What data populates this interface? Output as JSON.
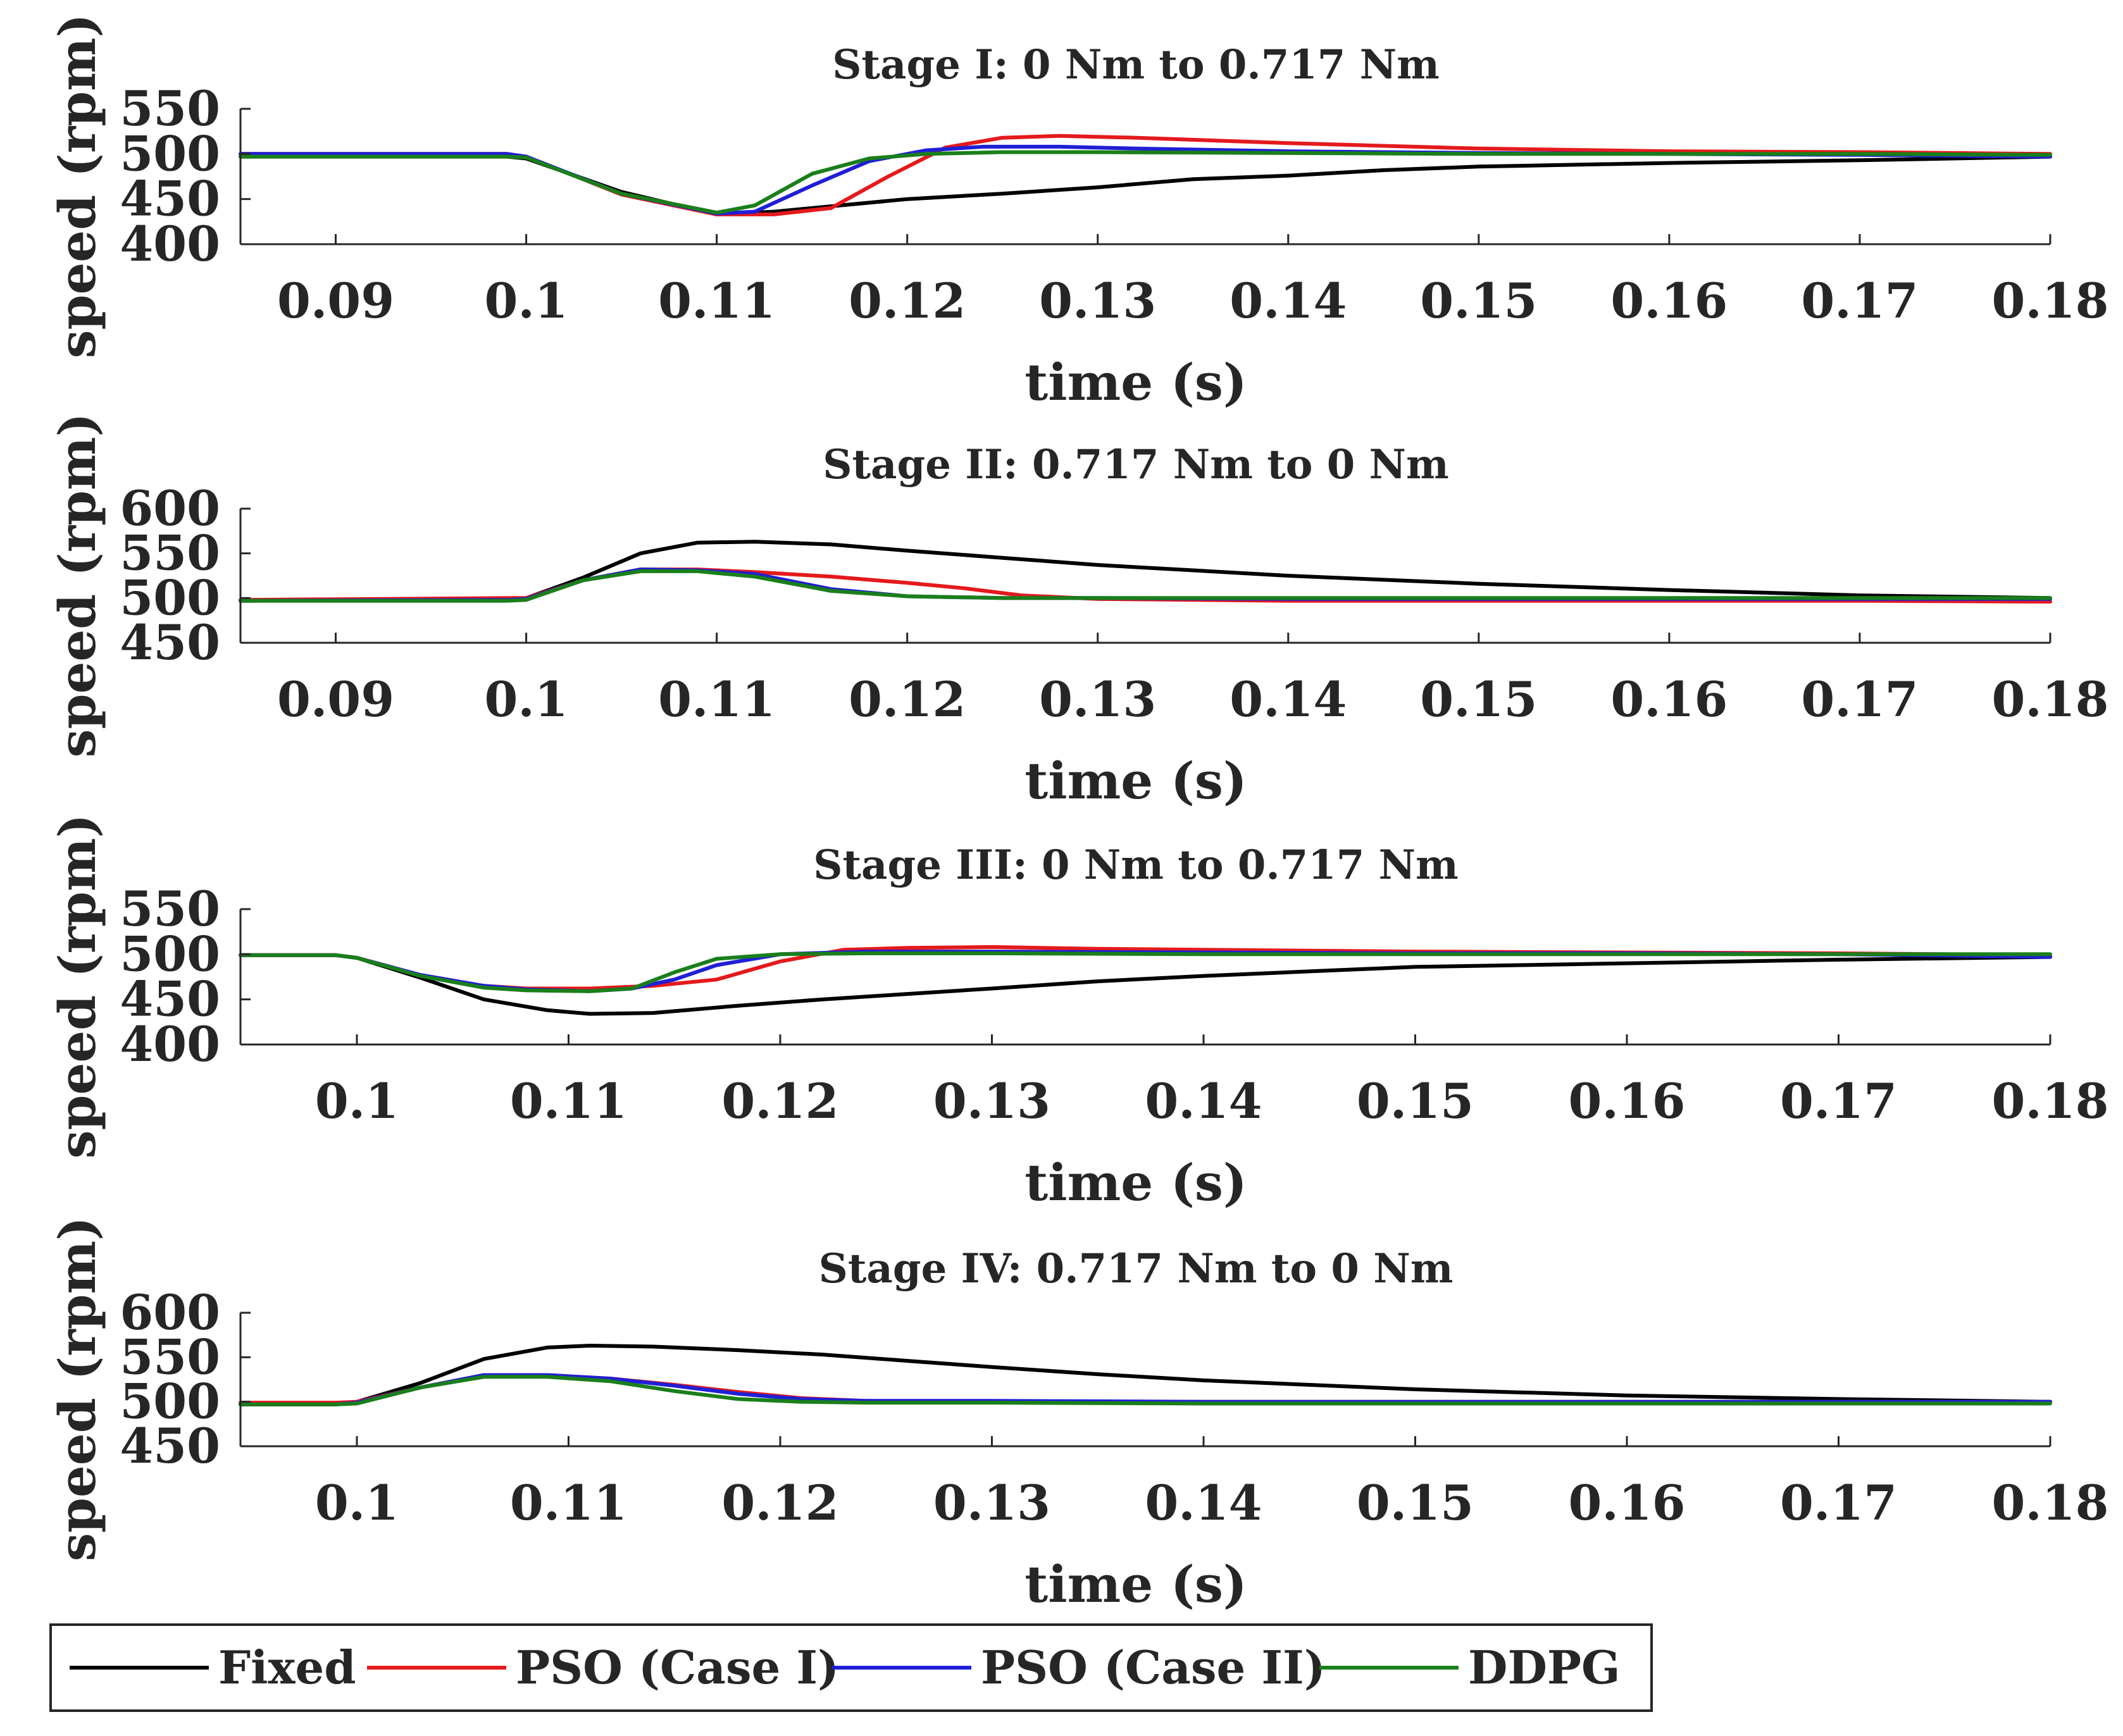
{
  "chart_data": [
    {
      "type": "line",
      "title": "Stage I: 0 Nm to 0.717 Nm",
      "xlabel": "time (s)",
      "ylabel": "speed (rpm)",
      "xlim": [
        0.085,
        0.18
      ],
      "ylim": [
        400,
        550
      ],
      "xticks": [
        0.09,
        0.1,
        0.11,
        0.12,
        0.13,
        0.14,
        0.15,
        0.16,
        0.17,
        0.18
      ],
      "xtick_labels": [
        "0.09",
        "0.1",
        "0.11",
        "0.12",
        "0.13",
        "0.14",
        "0.15",
        "0.16",
        "0.17",
        "0.18"
      ],
      "yticks": [
        400,
        450,
        500,
        550
      ],
      "ytick_labels": [
        "400",
        "450",
        "500",
        "550"
      ],
      "series": [
        {
          "name": "Fixed",
          "color": "#000000",
          "x": [
            0.085,
            0.099,
            0.1,
            0.105,
            0.11,
            0.113,
            0.12,
            0.125,
            0.13,
            0.135,
            0.14,
            0.145,
            0.15,
            0.16,
            0.17,
            0.18
          ],
          "y": [
            497,
            497,
            495,
            458,
            433,
            436,
            450,
            456,
            463,
            472,
            476,
            482,
            486,
            490,
            493,
            497
          ]
        },
        {
          "name": "PSO (Case I)",
          "color": "#e41a1c",
          "x": [
            0.085,
            0.099,
            0.1,
            0.105,
            0.11,
            0.113,
            0.116,
            0.119,
            0.122,
            0.125,
            0.128,
            0.132,
            0.14,
            0.15,
            0.16,
            0.17,
            0.18
          ],
          "y": [
            500,
            500,
            497,
            455,
            433,
            433,
            440,
            475,
            507,
            518,
            520,
            518,
            512,
            506,
            503,
            502,
            500
          ]
        },
        {
          "name": "PSO (Case II)",
          "color": "#1f1fd6",
          "x": [
            0.085,
            0.099,
            0.1,
            0.105,
            0.11,
            0.112,
            0.115,
            0.118,
            0.121,
            0.124,
            0.128,
            0.132,
            0.14,
            0.15,
            0.16,
            0.17,
            0.18
          ],
          "y": [
            500,
            500,
            497,
            456,
            434,
            436,
            465,
            492,
            504,
            508,
            508,
            506,
            503,
            501,
            500,
            499,
            497
          ]
        },
        {
          "name": "DDPG",
          "color": "#1a7f1a",
          "x": [
            0.085,
            0.099,
            0.1,
            0.105,
            0.11,
            0.112,
            0.115,
            0.118,
            0.121,
            0.125,
            0.13,
            0.14,
            0.15,
            0.16,
            0.17,
            0.18
          ],
          "y": [
            497,
            497,
            496,
            456,
            435,
            443,
            478,
            495,
            500,
            502,
            502,
            501,
            500,
            500,
            500,
            499
          ]
        }
      ]
    },
    {
      "type": "line",
      "title": "Stage II: 0.717 Nm to 0 Nm",
      "xlabel": "time (s)",
      "ylabel": "speed (rpm)",
      "xlim": [
        0.085,
        0.18
      ],
      "ylim": [
        450,
        600
      ],
      "xticks": [
        0.09,
        0.1,
        0.11,
        0.12,
        0.13,
        0.14,
        0.15,
        0.16,
        0.17,
        0.18
      ],
      "xtick_labels": [
        "0.09",
        "0.1",
        "0.11",
        "0.12",
        "0.13",
        "0.14",
        "0.15",
        "0.16",
        "0.17",
        "0.18"
      ],
      "yticks": [
        450,
        500,
        550,
        600
      ],
      "ytick_labels": [
        "450",
        "500",
        "550",
        "600"
      ],
      "series": [
        {
          "name": "Fixed",
          "color": "#000000",
          "x": [
            0.085,
            0.099,
            0.1,
            0.103,
            0.106,
            0.109,
            0.112,
            0.116,
            0.12,
            0.125,
            0.13,
            0.14,
            0.15,
            0.16,
            0.17,
            0.18
          ],
          "y": [
            497,
            498,
            500,
            523,
            550,
            562,
            563,
            560,
            553,
            545,
            537,
            525,
            516,
            509,
            503,
            500
          ]
        },
        {
          "name": "PSO (Case I)",
          "color": "#e41a1c",
          "x": [
            0.085,
            0.099,
            0.1,
            0.103,
            0.106,
            0.109,
            0.112,
            0.116,
            0.12,
            0.123,
            0.126,
            0.13,
            0.14,
            0.15,
            0.16,
            0.17,
            0.18
          ],
          "y": [
            498,
            500,
            500,
            520,
            532,
            532,
            529,
            524,
            517,
            511,
            503,
            499,
            497,
            497,
            497,
            497,
            496
          ]
        },
        {
          "name": "PSO (Case II)",
          "color": "#1f1fd6",
          "x": [
            0.085,
            0.099,
            0.1,
            0.103,
            0.106,
            0.109,
            0.112,
            0.116,
            0.12,
            0.125,
            0.13,
            0.14,
            0.15,
            0.16,
            0.17,
            0.18
          ],
          "y": [
            497,
            498,
            499,
            520,
            532,
            531,
            527,
            510,
            502,
            500,
            500,
            499,
            499,
            499,
            499,
            499
          ]
        },
        {
          "name": "DDPG",
          "color": "#1a7f1a",
          "x": [
            0.085,
            0.099,
            0.1,
            0.103,
            0.106,
            0.109,
            0.112,
            0.116,
            0.12,
            0.125,
            0.13,
            0.14,
            0.15,
            0.16,
            0.17,
            0.18
          ],
          "y": [
            497,
            497,
            498,
            520,
            530,
            530,
            524,
            508,
            502,
            500,
            500,
            500,
            500,
            500,
            500,
            500
          ]
        }
      ]
    },
    {
      "type": "line",
      "title": "Stage III: 0 Nm to 0.717 Nm",
      "xlabel": "time (s)",
      "ylabel": "speed (rpm)",
      "xlim": [
        0.0945,
        0.18
      ],
      "ylim": [
        400,
        550
      ],
      "xticks": [
        0.1,
        0.11,
        0.12,
        0.13,
        0.14,
        0.15,
        0.16,
        0.17,
        0.18
      ],
      "xtick_labels": [
        "0.1",
        "0.11",
        "0.12",
        "0.13",
        "0.14",
        "0.15",
        "0.16",
        "0.17",
        "0.18"
      ],
      "yticks": [
        400,
        450,
        500,
        550
      ],
      "ytick_labels": [
        "400",
        "450",
        "500",
        "550"
      ],
      "series": [
        {
          "name": "Fixed",
          "color": "#000000",
          "x": [
            0.0945,
            0.099,
            0.1,
            0.103,
            0.106,
            0.109,
            0.111,
            0.114,
            0.118,
            0.122,
            0.126,
            0.13,
            0.135,
            0.14,
            0.145,
            0.15,
            0.155,
            0.16,
            0.17,
            0.18
          ],
          "y": [
            499,
            499,
            496,
            474,
            450,
            438,
            434,
            435,
            443,
            450,
            456,
            462,
            470,
            476,
            481,
            486,
            488,
            490,
            494,
            497
          ]
        },
        {
          "name": "PSO (Case I)",
          "color": "#e41a1c",
          "x": [
            0.0945,
            0.099,
            0.1,
            0.103,
            0.106,
            0.108,
            0.111,
            0.114,
            0.117,
            0.12,
            0.123,
            0.126,
            0.13,
            0.135,
            0.14,
            0.15,
            0.16,
            0.17,
            0.18
          ],
          "y": [
            499,
            499,
            496,
            477,
            465,
            462,
            462,
            465,
            472,
            492,
            505,
            507,
            508,
            506,
            505,
            503,
            502,
            501,
            499
          ]
        },
        {
          "name": "PSO (Case II)",
          "color": "#1f1fd6",
          "x": [
            0.0945,
            0.099,
            0.1,
            0.103,
            0.106,
            0.108,
            0.111,
            0.113,
            0.115,
            0.117,
            0.12,
            0.124,
            0.13,
            0.14,
            0.15,
            0.16,
            0.17,
            0.18
          ],
          "y": [
            499,
            499,
            496,
            477,
            465,
            461,
            459,
            462,
            472,
            488,
            500,
            503,
            503,
            502,
            501,
            501,
            500,
            497
          ]
        },
        {
          "name": "DDPG",
          "color": "#1a7f1a",
          "x": [
            0.0945,
            0.099,
            0.1,
            0.103,
            0.106,
            0.108,
            0.111,
            0.113,
            0.115,
            0.117,
            0.12,
            0.124,
            0.13,
            0.14,
            0.15,
            0.16,
            0.17,
            0.18
          ],
          "y": [
            499,
            499,
            496,
            476,
            463,
            460,
            459,
            462,
            480,
            495,
            500,
            501,
            501,
            500,
            500,
            500,
            500,
            500
          ]
        }
      ]
    },
    {
      "type": "line",
      "title": "Stage IV: 0.717 Nm to 0 Nm",
      "xlabel": "time (s)",
      "ylabel": "speed (rpm)",
      "xlim": [
        0.0945,
        0.18
      ],
      "ylim": [
        450,
        600
      ],
      "xticks": [
        0.1,
        0.11,
        0.12,
        0.13,
        0.14,
        0.15,
        0.16,
        0.17,
        0.18
      ],
      "xtick_labels": [
        "0.1",
        "0.11",
        "0.12",
        "0.13",
        "0.14",
        "0.15",
        "0.16",
        "0.17",
        "0.18"
      ],
      "yticks": [
        450,
        500,
        550,
        600
      ],
      "ytick_labels": [
        "450",
        "500",
        "550",
        "600"
      ],
      "series": [
        {
          "name": "Fixed",
          "color": "#000000",
          "x": [
            0.0945,
            0.099,
            0.1,
            0.103,
            0.106,
            0.109,
            0.111,
            0.114,
            0.118,
            0.122,
            0.126,
            0.13,
            0.135,
            0.14,
            0.15,
            0.16,
            0.17,
            0.18
          ],
          "y": [
            497,
            497,
            500,
            521,
            548,
            561,
            563,
            562,
            558,
            553,
            546,
            539,
            531,
            524,
            514,
            507,
            503,
            500
          ]
        },
        {
          "name": "PSO (Case I)",
          "color": "#e41a1c",
          "x": [
            0.0945,
            0.099,
            0.1,
            0.103,
            0.106,
            0.109,
            0.112,
            0.115,
            0.118,
            0.121,
            0.124,
            0.13,
            0.14,
            0.15,
            0.16,
            0.17,
            0.18
          ],
          "y": [
            499,
            499,
            500,
            516,
            530,
            530,
            526,
            519,
            511,
            504,
            501,
            500,
            500,
            500,
            500,
            500,
            500
          ]
        },
        {
          "name": "PSO (Case II)",
          "color": "#1f1fd6",
          "x": [
            0.0945,
            0.099,
            0.1,
            0.103,
            0.106,
            0.109,
            0.112,
            0.115,
            0.118,
            0.121,
            0.124,
            0.13,
            0.14,
            0.15,
            0.16,
            0.17,
            0.18
          ],
          "y": [
            497,
            497,
            499,
            516,
            530,
            530,
            526,
            518,
            509,
            503,
            501,
            501,
            500,
            500,
            500,
            500,
            500
          ]
        },
        {
          "name": "DDPG",
          "color": "#1a7f1a",
          "x": [
            0.0945,
            0.099,
            0.1,
            0.103,
            0.106,
            0.109,
            0.112,
            0.115,
            0.118,
            0.121,
            0.124,
            0.13,
            0.14,
            0.15,
            0.16,
            0.17,
            0.18
          ],
          "y": [
            497,
            497,
            498,
            516,
            528,
            528,
            523,
            512,
            503,
            500,
            499,
            499,
            498,
            498,
            498,
            498,
            498
          ]
        }
      ]
    }
  ],
  "legend": {
    "placement": "bottom-left",
    "entries": [
      {
        "label": "Fixed",
        "color": "#000000"
      },
      {
        "label": "PSO (Case I)",
        "color": "#e41a1c"
      },
      {
        "label": "PSO (Case II)",
        "color": "#1f1fd6"
      },
      {
        "label": "DDPG",
        "color": "#1a7f1a"
      }
    ]
  }
}
